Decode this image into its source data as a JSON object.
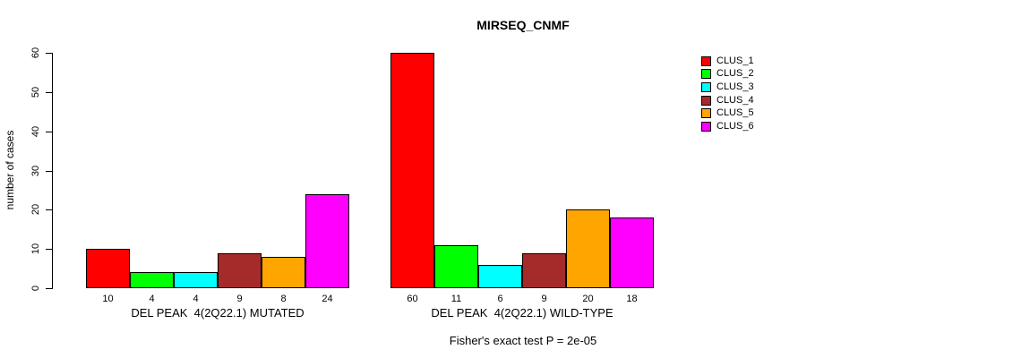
{
  "chart_data": {
    "type": "bar",
    "title": "MIRSEQ_CNMF",
    "ylabel": "number of cases",
    "xlabel": "",
    "ylim": [
      0,
      60
    ],
    "yticks": [
      0,
      10,
      20,
      30,
      40,
      50,
      60
    ],
    "grid": false,
    "legend_position": "right-outside",
    "bar_value_labels": true,
    "categories": [
      "DEL PEAK  4(2Q22.1) MUTATED",
      "DEL PEAK  4(2Q22.1) WILD-TYPE"
    ],
    "series": [
      {
        "name": "CLUS_1",
        "color": "#FF0000",
        "values": [
          10,
          60
        ]
      },
      {
        "name": "CLUS_2",
        "color": "#00FF00",
        "values": [
          4,
          11
        ]
      },
      {
        "name": "CLUS_3",
        "color": "#00FFFF",
        "values": [
          4,
          6
        ]
      },
      {
        "name": "CLUS_4",
        "color": "#A52A2A",
        "values": [
          9,
          9
        ]
      },
      {
        "name": "CLUS_5",
        "color": "#FFA500",
        "values": [
          8,
          20
        ]
      },
      {
        "name": "CLUS_6",
        "color": "#FF00FF",
        "values": [
          24,
          18
        ]
      }
    ],
    "annotation": "Fisher's exact test P = 2e-05"
  }
}
